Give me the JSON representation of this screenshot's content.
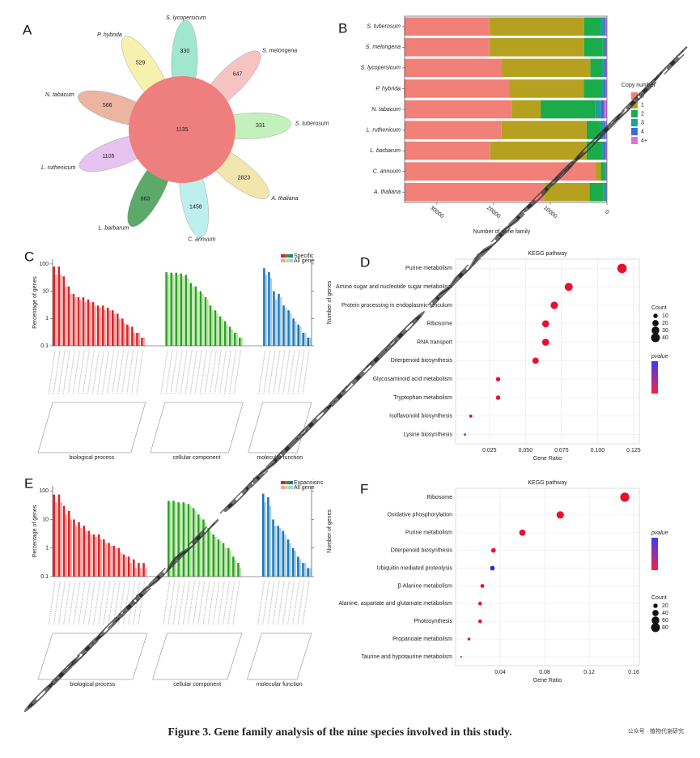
{
  "chart_data": [
    {
      "type": "flower",
      "panel": "A",
      "center_value": 1135,
      "categories": [
        "S. lycopersicum",
        "S. melongena",
        "S. tuberosum",
        "A. thaliana",
        "C. annuum",
        "L. barbarum",
        "L. ruthenicum",
        "N. tabacum",
        "P. hybrida"
      ],
      "values": [
        330,
        647,
        331,
        2823,
        1458,
        663,
        1105,
        566,
        529
      ],
      "center_color": "#ef7f7f",
      "colors": [
        "#8fe3c8",
        "#f5b8b8",
        "#b9efb0",
        "#f0e2a0",
        "#b3ecec",
        "#3f9a50",
        "#e3b8ee",
        "#e8a890",
        "#f5f0a0"
      ]
    },
    {
      "type": "hstack",
      "panel": "B",
      "xlabel": "Number of gene family",
      "legend_title": "Copy number",
      "legend": "right",
      "categories": [
        "S. tuberosum",
        "S. melongena",
        "S. lycopersicum",
        "P. hybrida",
        "N. tabacum",
        "L. ruthenicum",
        "L. barbarum",
        "C. annuum",
        "A. thaliana"
      ],
      "series": [
        {
          "name": "0",
          "color": "#f08078",
          "values": [
            15000,
            15000,
            17100,
            18600,
            18900,
            17100,
            15100,
            33600,
            24600
          ]
        },
        {
          "name": "1",
          "color": "#b5a11f",
          "values": [
            16700,
            16700,
            15700,
            13100,
            5100,
            15000,
            17000,
            1000,
            8000
          ]
        },
        {
          "name": "2",
          "color": "#1aab4a",
          "values": [
            2900,
            3300,
            2100,
            3100,
            9600,
            2400,
            2600,
            700,
            2400
          ]
        },
        {
          "name": "3",
          "color": "#1f9e9a",
          "values": [
            600,
            400,
            400,
            500,
            1000,
            600,
            500,
            200,
            400
          ]
        },
        {
          "name": "4",
          "color": "#3a6fd8",
          "values": [
            300,
            200,
            300,
            300,
            600,
            300,
            300,
            100,
            200
          ]
        },
        {
          "name": "4+",
          "color": "#e26ee0",
          "values": [
            250,
            150,
            150,
            200,
            500,
            300,
            200,
            100,
            100
          ]
        }
      ],
      "xlim": [
        35700,
        0
      ],
      "xticks": [
        30000,
        20000,
        10000,
        0
      ]
    },
    {
      "type": "go",
      "panel": "C",
      "ylabel": "Percentage of genes",
      "y2label": "Number of genes",
      "series_names": [
        "Specific",
        "All gene"
      ],
      "legend": "upper right",
      "ylim": [
        0.1,
        150
      ],
      "yticks": [
        0.1,
        1,
        10,
        100
      ],
      "log_y": true,
      "groups": [
        {
          "name": "biological process",
          "colors": [
            "#d62728",
            "#f4a3a3"
          ],
          "values": [
            [
              80,
              80,
              35,
              15,
              8,
              6,
              6,
              5,
              4,
              3,
              3,
              2.5,
              2,
              1.5,
              1,
              0.6,
              0.5,
              0.3,
              0.2
            ],
            [
              40,
              40,
              15,
              8,
              6,
              5,
              4,
              4,
              3,
              2.5,
              2,
              2,
              1.5,
              1,
              0.7,
              0.5,
              0.3,
              0.3,
              0.2
            ]
          ]
        },
        {
          "name": "cellular component",
          "colors": [
            "#2ca02c",
            "#b8e6a0"
          ],
          "values": [
            [
              50,
              48,
              48,
              45,
              40,
              20,
              15,
              10,
              6,
              3,
              2,
              1.2,
              0.8,
              0.5,
              0.3,
              0.2
            ],
            [
              40,
              40,
              40,
              35,
              30,
              15,
              10,
              8,
              5,
              2,
              1.5,
              1,
              0.6,
              0.4,
              0.3,
              0.2
            ]
          ]
        },
        {
          "name": "molecular function",
          "colors": [
            "#1f77b4",
            "#a9cfe8"
          ],
          "values": [
            [
              70,
              50,
              10,
              8,
              3,
              2,
              1,
              0.6,
              0.3,
              0.2
            ],
            [
              40,
              30,
              5,
              6,
              2.5,
              1.5,
              0.8,
              0.5,
              0.3,
              0.2
            ]
          ]
        }
      ]
    },
    {
      "type": "dots",
      "panel": "D",
      "title": "KEGG pathway",
      "xlabel": "Gene Ratio",
      "size_title": "Count",
      "color_title": "pvalue",
      "categories": [
        "Purine metabolism",
        "Amino sugar and nucleotide sugar metabolism",
        "Protein processing in endoplasmic reticulum",
        "Ribosome",
        "RNA transport",
        "Diterpenoid biosynthesis",
        "Glycosaminoid acid metabolism",
        "Tryptophan metabolism",
        "Isoflavonoid biosynthesis",
        "Lysine biosynthesis"
      ],
      "values": [
        0.117,
        0.08,
        0.07,
        0.064,
        0.064,
        0.057,
        0.031,
        0.031,
        0.012,
        0.008
      ],
      "sizes": [
        45,
        33,
        28,
        25,
        25,
        20,
        10,
        10,
        5,
        3
      ],
      "colors": [
        "#e8112d",
        "#e8112d",
        "#e8112d",
        "#e8112d",
        "#e8112d",
        "#e8112d",
        "#e8112d",
        "#e8112d",
        "#e0103a",
        "#6a4fd0"
      ],
      "size_legend": [
        10,
        20,
        30,
        40
      ],
      "color_scale": [
        "#3a3aff",
        "#ff1f3a"
      ],
      "xlim": [
        0.0015,
        0.129
      ],
      "xticks": [
        0.025,
        {
          "value": 0.05,
          "label": "0.050"
        },
        0.075,
        {
          "value": 0.1,
          "label": "0.100"
        },
        0.125
      ]
    },
    {
      "type": "go",
      "panel": "E",
      "ylabel": "Percentage of genes",
      "y2label": "Number of genes",
      "series_names": [
        "Expansions",
        "All gene"
      ],
      "legend": "upper right",
      "ylim": [
        0.1,
        150
      ],
      "yticks": [
        0.1,
        1,
        10,
        100
      ],
      "log_y": true,
      "groups": [
        {
          "name": "biological process",
          "colors": [
            "#d62728",
            "#f4a3a3"
          ],
          "values": [
            [
              75,
              75,
              30,
              20,
              10,
              8,
              6,
              4,
              3,
              3,
              2,
              1.5,
              1.2,
              1,
              0.6,
              0.5,
              0.4,
              0.3,
              0.3
            ],
            [
              40,
              40,
              15,
              10,
              6,
              5,
              4,
              3,
              2.5,
              2,
              1.5,
              1.2,
              1,
              0.7,
              0.5,
              0.3,
              0.2,
              0.2,
              0.2
            ]
          ]
        },
        {
          "name": "cellular component",
          "colors": [
            "#2ca02c",
            "#b8e6a0"
          ],
          "values": [
            [
              45,
              45,
              40,
              40,
              35,
              25,
              15,
              10,
              5,
              3,
              2,
              1.5,
              1,
              0.5,
              0.3
            ],
            [
              40,
              40,
              35,
              35,
              30,
              20,
              12,
              8,
              4,
              2.5,
              1.8,
              1,
              0.8,
              0.4,
              0.2
            ]
          ]
        },
        {
          "name": "molecular function",
          "colors": [
            "#1f77b4",
            "#a9cfe8"
          ],
          "values": [
            [
              80,
              60,
              10,
              6,
              4,
              2,
              1,
              0.5,
              0.3,
              0.2
            ],
            [
              40,
              30,
              6,
              5,
              3,
              1.5,
              0.8,
              0.4,
              0.3,
              0.2
            ]
          ]
        }
      ]
    },
    {
      "type": "dots",
      "panel": "F",
      "title": "KEGG pathway",
      "xlabel": "Gene Ratio",
      "size_title": "Count",
      "color_title": "pvalue",
      "categories": [
        "Ribosome",
        "Oxidative phosphorylation",
        "Purine metabolism",
        "Diterpenoid biosynthesis",
        "Ubiquitin mediated proteolysis",
        "β-Alanine metabolism",
        "Alanine, aspartate and glutamate metabolism",
        "Photosynthesis",
        "Propanoate metabolism",
        "Taurine and hypotaurine metabolism"
      ],
      "values": [
        0.152,
        0.094,
        0.06,
        0.034,
        0.033,
        0.024,
        0.022,
        0.022,
        0.012,
        0.005
      ],
      "sizes": [
        85,
        55,
        40,
        22,
        22,
        15,
        14,
        14,
        8,
        3
      ],
      "colors": [
        "#e8112d",
        "#e8112d",
        "#e8112d",
        "#e8112d",
        "#2b2bd6",
        "#e8112d",
        "#e8112d",
        "#e8112d",
        "#e8112d",
        "#e8112d"
      ],
      "size_legend": [
        20,
        40,
        60,
        80
      ],
      "color_scale": [
        "#3a3aff",
        "#ff1f3a"
      ],
      "xlim": [
        0,
        0.165
      ],
      "xticks": [
        0.04,
        0.08,
        0.12,
        0.16
      ]
    }
  ],
  "caption": "Figure 3. Gene family analysis of the nine species involved in this study.",
  "watermark": "ORIGINAL UNEDITED MANUSCRIPT",
  "credit": "公众号 · 植物代谢研究"
}
